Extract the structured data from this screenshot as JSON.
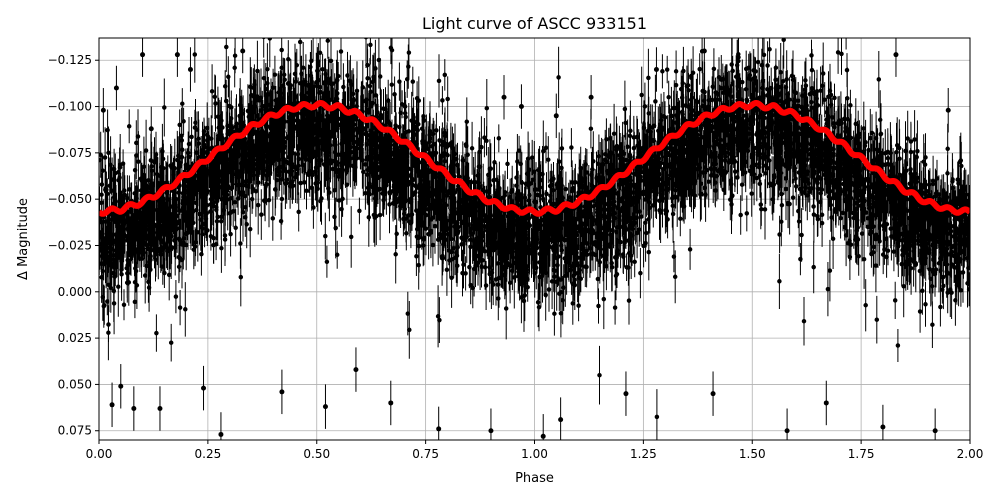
{
  "chart_data": {
    "type": "scatter",
    "title": "Light curve of ASCC 933151",
    "xlabel": "Phase",
    "ylabel": "Δ Magnitude",
    "xlim": [
      0.0,
      2.0
    ],
    "ylim": [
      -0.137,
      0.08
    ],
    "y_inverted": true,
    "grid": true,
    "xticks": [
      "0.00",
      "0.25",
      "0.50",
      "0.75",
      "1.00",
      "1.25",
      "1.50",
      "1.75",
      "2.00"
    ],
    "yticks": [
      "−0.125",
      "−0.100",
      "−0.075",
      "−0.050",
      "−0.025",
      "0.000",
      "0.025",
      "0.050",
      "0.075"
    ],
    "ytick_values": [
      -0.125,
      -0.1,
      -0.075,
      -0.05,
      -0.025,
      0.0,
      0.025,
      0.05,
      0.075
    ],
    "xtick_values": [
      0,
      0.25,
      0.5,
      0.75,
      1,
      1.25,
      1.5,
      1.75,
      2
    ],
    "colors": {
      "points": "#000000",
      "model": "#ff0000",
      "grid": "#b0b0b0"
    },
    "series": [
      {
        "kind": "errorbar-points",
        "color": "#000000",
        "description_values": {
          "typical_error": 0.012,
          "scatter_sigma": 0.016
        },
        "sample_points": [
          [
            0.01,
            -0.098
          ],
          [
            0.04,
            -0.11
          ],
          [
            0.1,
            -0.128
          ],
          [
            0.12,
            -0.088
          ],
          [
            0.18,
            -0.128
          ],
          [
            0.03,
            0.061
          ],
          [
            0.05,
            0.051
          ],
          [
            0.08,
            0.063
          ],
          [
            0.14,
            0.063
          ],
          [
            0.24,
            0.052
          ],
          [
            0.28,
            0.077
          ],
          [
            0.42,
            0.054
          ],
          [
            0.52,
            0.062
          ],
          [
            0.59,
            0.042
          ],
          [
            0.67,
            0.06
          ],
          [
            0.78,
            0.074
          ],
          [
            0.9,
            0.075
          ],
          [
            1.02,
            0.078
          ],
          [
            1.06,
            0.069
          ],
          [
            1.21,
            0.055
          ],
          [
            1.41,
            0.055
          ],
          [
            1.58,
            0.075
          ],
          [
            1.67,
            0.06
          ],
          [
            1.8,
            0.073
          ],
          [
            1.92,
            0.075
          ],
          [
            0.97,
            -0.1
          ],
          [
            1.05,
            -0.095
          ],
          [
            1.13,
            -0.105
          ],
          [
            1.28,
            -0.12
          ],
          [
            1.83,
            -0.128
          ],
          [
            1.95,
            -0.098
          ],
          [
            0.93,
            -0.105
          ],
          [
            0.21,
            -0.12
          ],
          [
            0.33,
            -0.13
          ],
          [
            1.39,
            -0.13
          ]
        ]
      },
      {
        "kind": "binned-model",
        "color": "#ff0000",
        "x": [
          0.0,
          0.05,
          0.1,
          0.15,
          0.2,
          0.25,
          0.3,
          0.35,
          0.4,
          0.45,
          0.5,
          0.55,
          0.6,
          0.65,
          0.7,
          0.75,
          0.8,
          0.85,
          0.9,
          0.95,
          1.0,
          1.05,
          1.1,
          1.15,
          1.2,
          1.25,
          1.3,
          1.35,
          1.4,
          1.45,
          1.5,
          1.55,
          1.6,
          1.65,
          1.7,
          1.75,
          1.8,
          1.85,
          1.9,
          1.95,
          2.0
        ],
        "y": [
          -0.043,
          -0.0444,
          -0.0485,
          -0.0549,
          -0.063,
          -0.072,
          -0.081,
          -0.0891,
          -0.0955,
          -0.0996,
          -0.101,
          -0.0996,
          -0.0955,
          -0.0891,
          -0.081,
          -0.072,
          -0.063,
          -0.0549,
          -0.0485,
          -0.0444,
          -0.043,
          -0.0444,
          -0.0485,
          -0.0549,
          -0.063,
          -0.072,
          -0.081,
          -0.0891,
          -0.0955,
          -0.0996,
          -0.101,
          -0.0996,
          -0.0955,
          -0.0891,
          -0.081,
          -0.072,
          -0.063,
          -0.0549,
          -0.0485,
          -0.0444,
          -0.043
        ]
      }
    ]
  }
}
